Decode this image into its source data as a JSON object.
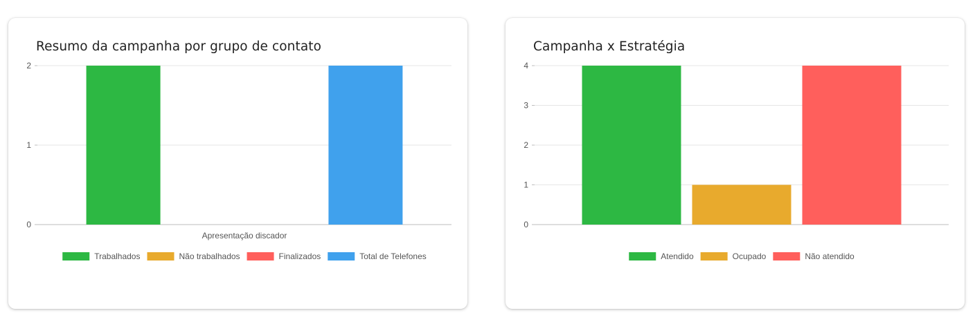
{
  "charts": [
    {
      "title": "Resumo da campanha por grupo de contato",
      "chart_data": {
        "type": "bar",
        "categories": [
          "Apresentação discador"
        ],
        "series": [
          {
            "name": "Trabalhados",
            "values": [
              2
            ],
            "color": "#2db843"
          },
          {
            "name": "Não trabalhados",
            "values": [
              0
            ],
            "color": "#e8aa2d"
          },
          {
            "name": "Finalizados",
            "values": [
              0
            ],
            "color": "#ff5f5c"
          },
          {
            "name": "Total de Telefones",
            "values": [
              2
            ],
            "color": "#40a1ed"
          }
        ],
        "yticks": [
          0,
          1,
          2
        ],
        "ylim": [
          0,
          2
        ],
        "grid": true,
        "legend_position": "bottom"
      }
    },
    {
      "title": "Campanha x Estratégia",
      "chart_data": {
        "type": "bar",
        "categories": [
          ""
        ],
        "series": [
          {
            "name": "Atendido",
            "values": [
              4
            ],
            "color": "#2db843"
          },
          {
            "name": "Ocupado",
            "values": [
              1
            ],
            "color": "#e8aa2d"
          },
          {
            "name": "Não atendido",
            "values": [
              4
            ],
            "color": "#ff5f5c"
          }
        ],
        "yticks": [
          0,
          1,
          2,
          3,
          4
        ],
        "ylim": [
          0,
          4
        ],
        "grid": true,
        "legend_position": "bottom"
      }
    }
  ]
}
